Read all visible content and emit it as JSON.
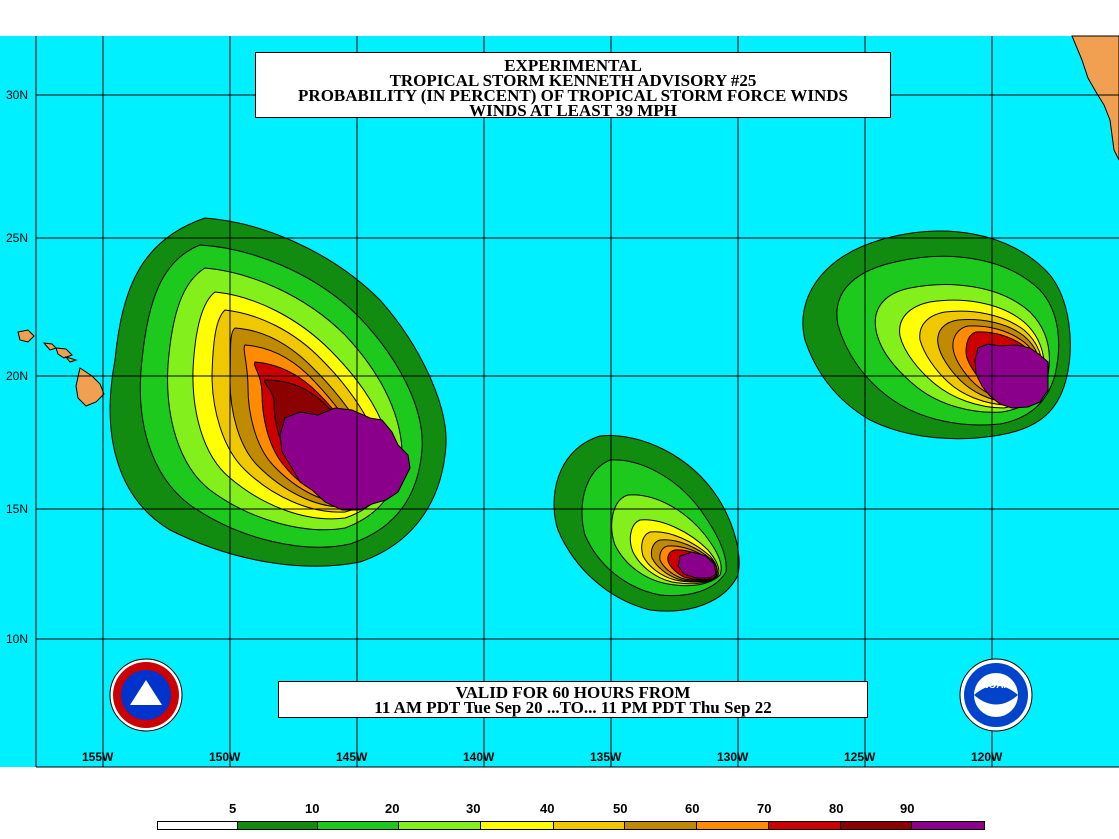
{
  "title": {
    "line1": "EXPERIMENTAL",
    "line2": "TROPICAL STORM KENNETH ADVISORY #25",
    "line3": "PROBABILITY (IN PERCENT) OF TROPICAL STORM FORCE WINDS",
    "line4": "WINDS AT LEAST 39 MPH"
  },
  "valid": {
    "line1": "VALID FOR 60 HOURS FROM",
    "line2": "11 AM PDT Tue Sep 20 ...TO... 11 PM PDT Thu Sep 22"
  },
  "latitude_labels": [
    "30N",
    "25N",
    "20N",
    "15N",
    "10N"
  ],
  "longitude_labels": [
    "155W",
    "150W",
    "145W",
    "140W",
    "135W",
    "130W",
    "125W",
    "120W"
  ],
  "legend": {
    "labels": [
      "5",
      "10",
      "20",
      "30",
      "40",
      "50",
      "60",
      "70",
      "80",
      "90"
    ],
    "colors": [
      "#ffffff",
      "#118c11",
      "#1ec91e",
      "#84f01b",
      "#ffff00",
      "#f0c800",
      "#c08a00",
      "#ff8c00",
      "#cc0000",
      "#8b0000",
      "#8b008b"
    ]
  },
  "map_colors": {
    "ocean": "#00f0ff",
    "land": "#f0a050",
    "grid": "#000000"
  },
  "logos": {
    "left": "nws-logo-icon",
    "right": "noaa-logo-icon",
    "noaa_text": "NOAA"
  }
}
